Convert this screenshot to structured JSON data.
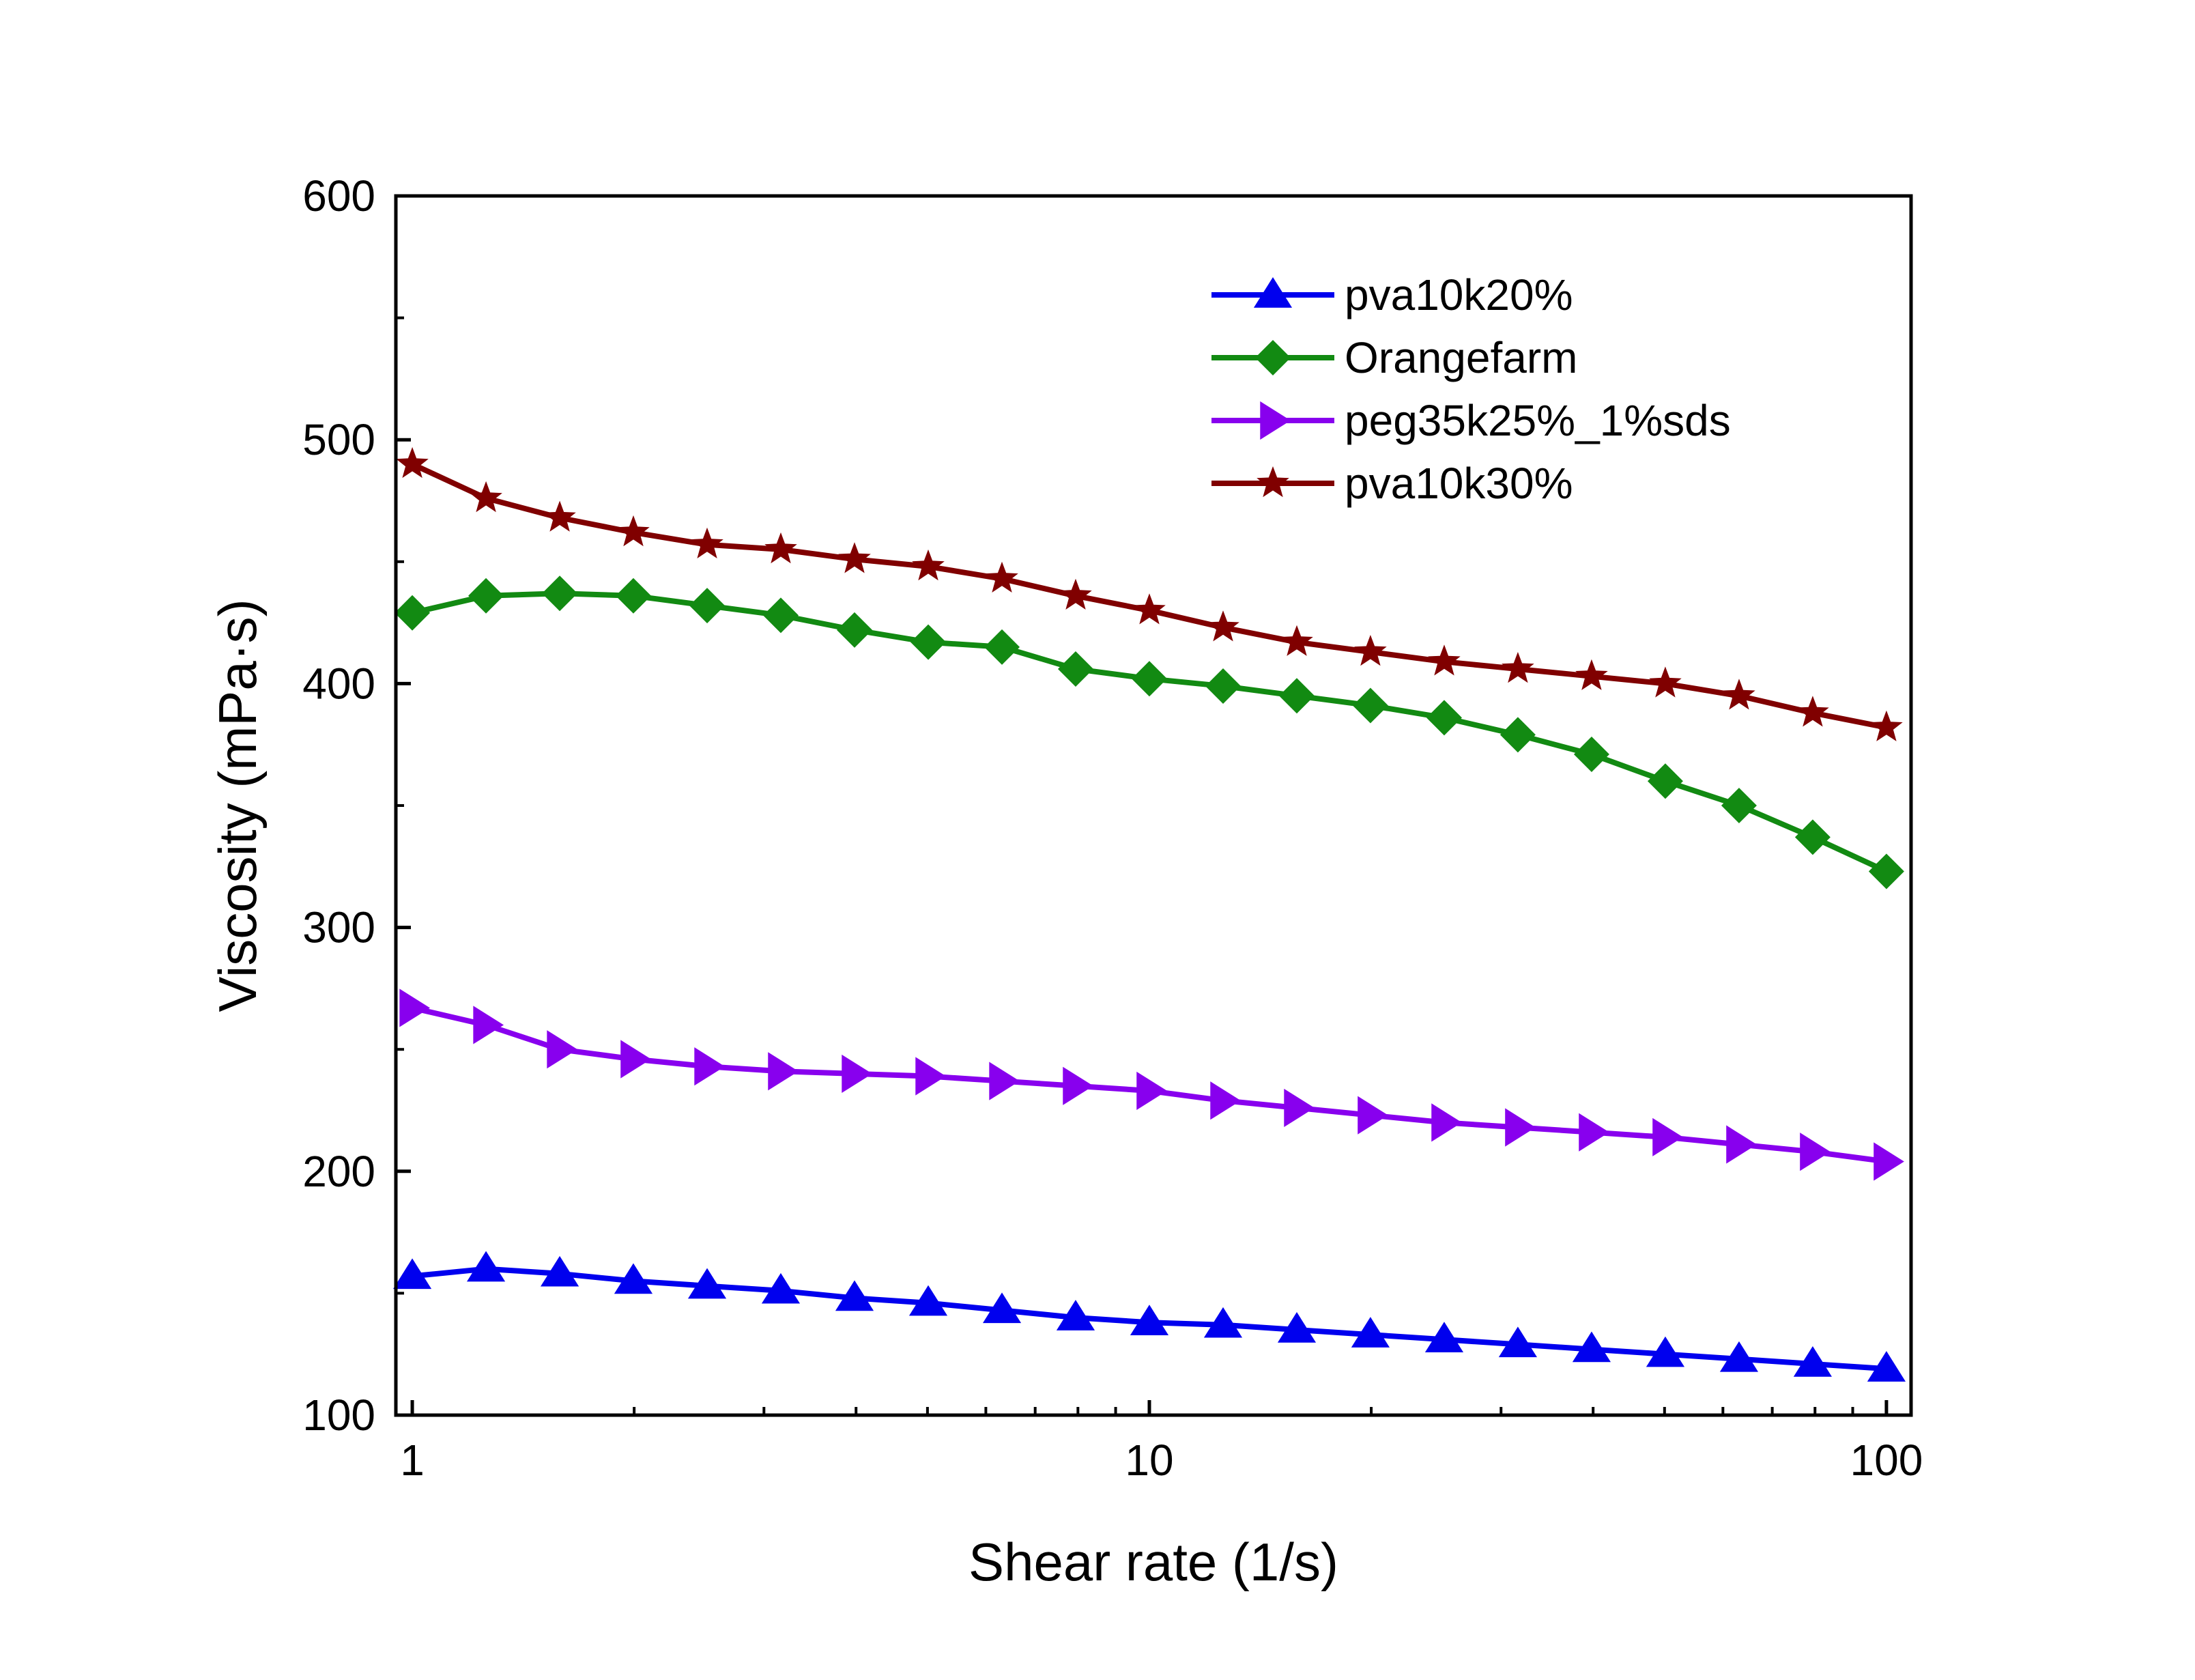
{
  "chart_data": {
    "type": "line",
    "title": "",
    "xlabel": "Shear rate (1/s)",
    "ylabel": "Viscosity (mPa·s)",
    "xscale": "log",
    "xlim": [
      0.95,
      108
    ],
    "ylim": [
      100,
      600
    ],
    "xticks": [
      1,
      10,
      100
    ],
    "xtick_labels": [
      "1",
      "10",
      "100"
    ],
    "yticks": [
      100,
      200,
      300,
      400,
      500,
      600
    ],
    "ytick_labels": [
      "100",
      "200",
      "300",
      "400",
      "500",
      "600"
    ],
    "grid": false,
    "legend_position": "top-right",
    "x": [
      1,
      1.259,
      1.585,
      1.995,
      2.512,
      3.162,
      3.981,
      5.012,
      6.31,
      7.943,
      10,
      12.59,
      15.85,
      19.95,
      25.12,
      31.62,
      39.81,
      50.12,
      63.1,
      79.43,
      100
    ],
    "series": [
      {
        "name": "pva10k20%",
        "color": "#0000ee",
        "marker": "triangle-up",
        "values": [
          157,
          160,
          158,
          155,
          153,
          151,
          148,
          146,
          143,
          140,
          138,
          137,
          135,
          133,
          131,
          129,
          127,
          125,
          123,
          121,
          119
        ]
      },
      {
        "name": "Orangefarm",
        "color": "#128a12",
        "marker": "diamond",
        "values": [
          429,
          436,
          437,
          436,
          432,
          428,
          422,
          417,
          415,
          406,
          402,
          399,
          395,
          391,
          386,
          379,
          371,
          360,
          350,
          337,
          323
        ]
      },
      {
        "name": "peg35k25%_1%sds",
        "color": "#8800ee",
        "marker": "triangle-right",
        "values": [
          267,
          260,
          250,
          246,
          243,
          241,
          240,
          239,
          237,
          235,
          233,
          229,
          226,
          223,
          220,
          218,
          216,
          214,
          211,
          208,
          204
        ]
      },
      {
        "name": "pva10k30%",
        "color": "#800000",
        "marker": "star",
        "values": [
          490,
          476,
          468,
          462,
          457,
          455,
          451,
          448,
          443,
          436,
          430,
          423,
          417,
          413,
          409,
          406,
          403,
          400,
          395,
          388,
          382
        ]
      }
    ]
  }
}
